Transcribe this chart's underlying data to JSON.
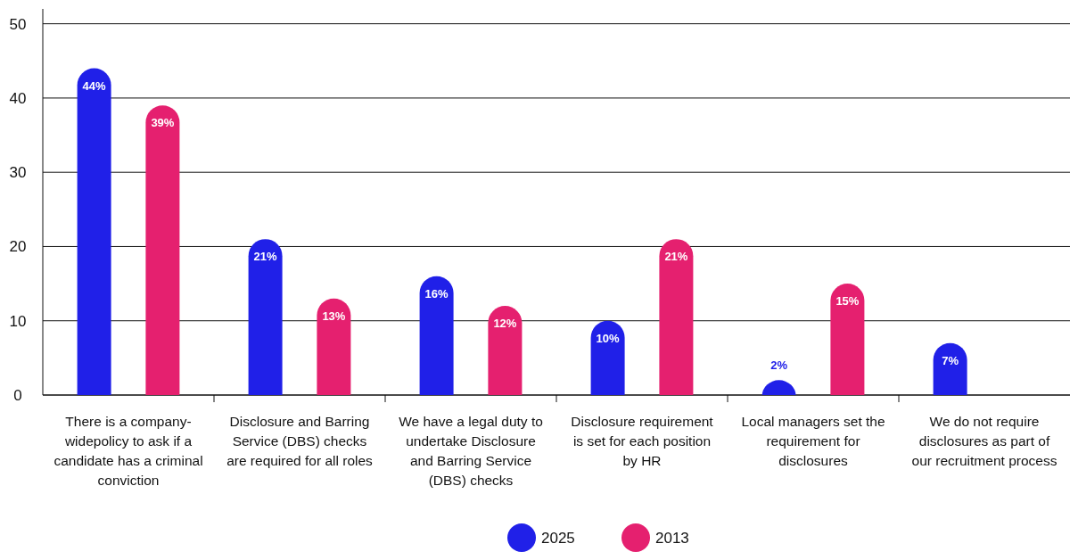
{
  "chart_data": {
    "type": "bar",
    "categories": [
      "There is a company-widepolicy to ask if a candidate has a criminal conviction",
      "Disclosure and Barring Service (DBS) checks are required for all roles",
      "We have a legal duty to undertake Disclosure and Barring Service (DBS) checks",
      "Disclosure requirement is set for each position by HR",
      "Local managers set the requirement for disclosures",
      "We do not require disclosures as part of our recruitment process"
    ],
    "series": [
      {
        "name": "2025",
        "color": "#2020e8",
        "values": [
          44,
          21,
          16,
          10,
          2,
          7
        ],
        "value_labels": [
          "44%",
          "21%",
          "16%",
          "10%",
          "2%",
          "7%"
        ]
      },
      {
        "name": "2013",
        "color": "#e5206f",
        "values": [
          39,
          13,
          12,
          21,
          15,
          null
        ],
        "value_labels": [
          "39%",
          "13%",
          "12%",
          "21%",
          "15%",
          null
        ]
      }
    ],
    "ylim": [
      0,
      52
    ],
    "yticks": [
      0,
      10,
      20,
      30,
      40,
      50
    ],
    "grid": "y",
    "legend": "bottom"
  }
}
